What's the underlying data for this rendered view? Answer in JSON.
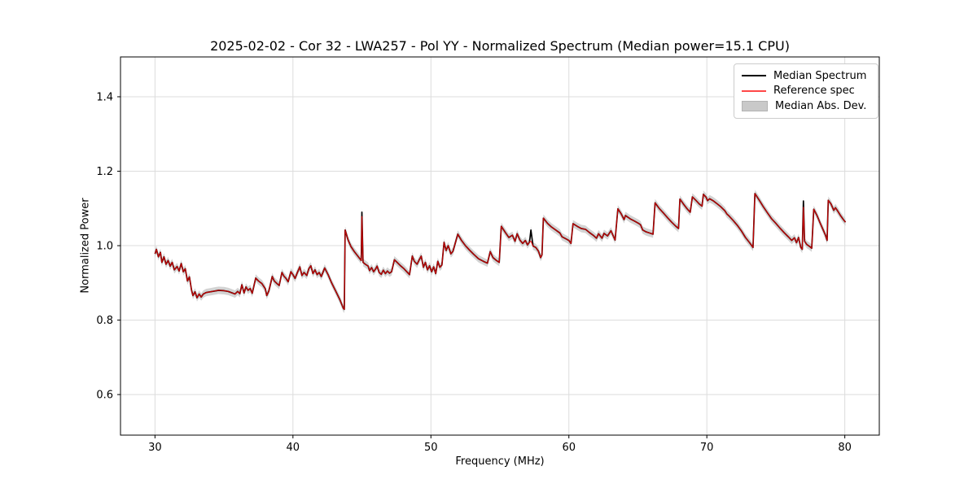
{
  "title": "2025-02-02 - Cor 32 - LWA257 - Pol YY - Normalized Spectrum (Median power=15.1 CPU)",
  "axes": {
    "xlabel": "Frequency (MHz)",
    "ylabel": "Normalized Power"
  },
  "legend": {
    "position": "upper right",
    "entries": [
      {
        "label": "Median Spectrum",
        "kind": "line",
        "color": "#000000"
      },
      {
        "label": "Reference spec",
        "kind": "line",
        "color": "rgba(255,0,0,0.72)"
      },
      {
        "label": "Median Abs. Dev.",
        "kind": "patch",
        "fill": "#c9c9c9",
        "edge": "#b3b3b3"
      }
    ]
  },
  "colors": {
    "median_line": "#000000",
    "reference_line_rgba": "rgba(255,0,0,0.75)",
    "mad_band_fill": "#c8c8c8",
    "grid": "#dcdcdc",
    "frame": "#000000",
    "tick_text": "#000000",
    "background": "#ffffff"
  },
  "chart_data": {
    "type": "line",
    "title": "2025-02-02 - Cor 32 - LWA257 - Pol YY - Normalized Spectrum (Median power=15.1 CPU)",
    "xlabel": "Frequency (MHz)",
    "ylabel": "Normalized Power",
    "xlim": [
      27.5,
      82.5
    ],
    "ylim": [
      0.491,
      1.507
    ],
    "x_ticks": [
      30,
      40,
      50,
      60,
      70,
      80
    ],
    "x_tick_labels": [
      "30",
      "40",
      "50",
      "60",
      "70",
      "80"
    ],
    "y_ticks": [
      0.6,
      0.8,
      1.0,
      1.2,
      1.4
    ],
    "y_tick_labels": [
      "0.6",
      "0.8",
      "1.0",
      "1.2",
      "1.4"
    ],
    "grid": true,
    "legend_position": "upper right",
    "band_halfwidth": 0.01,
    "reference_overrides": [
      [
        45.0,
        1.078
      ],
      [
        57.25,
        1.012
      ],
      [
        77.0,
        1.103
      ]
    ],
    "series": [
      {
        "name": "Median Spectrum",
        "points": [
          [
            30.0,
            0.978
          ],
          [
            30.1,
            0.99
          ],
          [
            30.25,
            0.97
          ],
          [
            30.4,
            0.982
          ],
          [
            30.5,
            0.955
          ],
          [
            30.65,
            0.97
          ],
          [
            30.8,
            0.95
          ],
          [
            30.95,
            0.96
          ],
          [
            31.1,
            0.945
          ],
          [
            31.25,
            0.955
          ],
          [
            31.4,
            0.935
          ],
          [
            31.6,
            0.944
          ],
          [
            31.75,
            0.932
          ],
          [
            31.9,
            0.952
          ],
          [
            32.05,
            0.93
          ],
          [
            32.2,
            0.938
          ],
          [
            32.35,
            0.905
          ],
          [
            32.5,
            0.916
          ],
          [
            32.65,
            0.88
          ],
          [
            32.75,
            0.866
          ],
          [
            32.9,
            0.876
          ],
          [
            33.05,
            0.86
          ],
          [
            33.2,
            0.87
          ],
          [
            33.35,
            0.862
          ],
          [
            33.5,
            0.87
          ],
          [
            33.7,
            0.874
          ],
          [
            34.0,
            0.876
          ],
          [
            34.3,
            0.878
          ],
          [
            34.6,
            0.88
          ],
          [
            35.0,
            0.879
          ],
          [
            35.3,
            0.877
          ],
          [
            35.6,
            0.873
          ],
          [
            35.8,
            0.87
          ],
          [
            36.0,
            0.877
          ],
          [
            36.15,
            0.871
          ],
          [
            36.3,
            0.895
          ],
          [
            36.45,
            0.873
          ],
          [
            36.6,
            0.889
          ],
          [
            36.75,
            0.88
          ],
          [
            36.9,
            0.885
          ],
          [
            37.05,
            0.872
          ],
          [
            37.3,
            0.913
          ],
          [
            37.5,
            0.905
          ],
          [
            37.75,
            0.898
          ],
          [
            38.0,
            0.884
          ],
          [
            38.1,
            0.866
          ],
          [
            38.25,
            0.878
          ],
          [
            38.5,
            0.917
          ],
          [
            38.65,
            0.905
          ],
          [
            38.85,
            0.898
          ],
          [
            39.0,
            0.893
          ],
          [
            39.2,
            0.928
          ],
          [
            39.35,
            0.918
          ],
          [
            39.5,
            0.912
          ],
          [
            39.65,
            0.903
          ],
          [
            39.85,
            0.93
          ],
          [
            40.0,
            0.922
          ],
          [
            40.15,
            0.912
          ],
          [
            40.3,
            0.926
          ],
          [
            40.5,
            0.943
          ],
          [
            40.65,
            0.92
          ],
          [
            40.8,
            0.928
          ],
          [
            41.0,
            0.92
          ],
          [
            41.15,
            0.938
          ],
          [
            41.3,
            0.946
          ],
          [
            41.45,
            0.925
          ],
          [
            41.6,
            0.935
          ],
          [
            41.75,
            0.922
          ],
          [
            41.9,
            0.928
          ],
          [
            42.05,
            0.917
          ],
          [
            42.3,
            0.94
          ],
          [
            42.55,
            0.922
          ],
          [
            42.8,
            0.9
          ],
          [
            43.1,
            0.878
          ],
          [
            43.4,
            0.855
          ],
          [
            43.65,
            0.832
          ],
          [
            43.72,
            0.829
          ],
          [
            43.78,
            1.042
          ],
          [
            44.0,
            1.015
          ],
          [
            44.2,
            0.998
          ],
          [
            44.45,
            0.984
          ],
          [
            44.7,
            0.972
          ],
          [
            44.95,
            0.96
          ],
          [
            45.0,
            1.09
          ],
          [
            45.08,
            0.955
          ],
          [
            45.25,
            0.95
          ],
          [
            45.45,
            0.945
          ],
          [
            45.55,
            0.933
          ],
          [
            45.7,
            0.941
          ],
          [
            45.85,
            0.93
          ],
          [
            46.0,
            0.938
          ],
          [
            46.1,
            0.945
          ],
          [
            46.25,
            0.928
          ],
          [
            46.4,
            0.923
          ],
          [
            46.55,
            0.934
          ],
          [
            46.7,
            0.925
          ],
          [
            46.85,
            0.932
          ],
          [
            47.0,
            0.926
          ],
          [
            47.15,
            0.93
          ],
          [
            47.35,
            0.962
          ],
          [
            47.55,
            0.955
          ],
          [
            47.8,
            0.946
          ],
          [
            48.05,
            0.938
          ],
          [
            48.3,
            0.928
          ],
          [
            48.45,
            0.922
          ],
          [
            48.65,
            0.972
          ],
          [
            48.8,
            0.958
          ],
          [
            49.0,
            0.95
          ],
          [
            49.15,
            0.962
          ],
          [
            49.3,
            0.972
          ],
          [
            49.45,
            0.942
          ],
          [
            49.6,
            0.955
          ],
          [
            49.75,
            0.935
          ],
          [
            49.9,
            0.946
          ],
          [
            50.05,
            0.93
          ],
          [
            50.2,
            0.943
          ],
          [
            50.35,
            0.925
          ],
          [
            50.5,
            0.958
          ],
          [
            50.65,
            0.942
          ],
          [
            50.8,
            0.948
          ],
          [
            50.95,
            1.009
          ],
          [
            51.1,
            0.987
          ],
          [
            51.25,
            1.0
          ],
          [
            51.45,
            0.978
          ],
          [
            51.6,
            0.985
          ],
          [
            51.95,
            1.031
          ],
          [
            52.2,
            1.015
          ],
          [
            52.5,
            1.0
          ],
          [
            52.8,
            0.988
          ],
          [
            53.1,
            0.977
          ],
          [
            53.45,
            0.965
          ],
          [
            53.8,
            0.958
          ],
          [
            54.1,
            0.953
          ],
          [
            54.3,
            0.984
          ],
          [
            54.5,
            0.968
          ],
          [
            54.75,
            0.96
          ],
          [
            54.95,
            0.955
          ],
          [
            55.1,
            1.052
          ],
          [
            55.4,
            1.035
          ],
          [
            55.65,
            1.022
          ],
          [
            55.9,
            1.028
          ],
          [
            56.1,
            1.012
          ],
          [
            56.25,
            1.032
          ],
          [
            56.45,
            1.015
          ],
          [
            56.65,
            1.006
          ],
          [
            56.85,
            1.014
          ],
          [
            57.0,
            1.002
          ],
          [
            57.15,
            1.01
          ],
          [
            57.25,
            1.042
          ],
          [
            57.4,
            0.999
          ],
          [
            57.6,
            0.995
          ],
          [
            57.8,
            0.985
          ],
          [
            57.95,
            0.968
          ],
          [
            58.05,
            0.975
          ],
          [
            58.15,
            1.074
          ],
          [
            58.45,
            1.06
          ],
          [
            58.75,
            1.05
          ],
          [
            59.05,
            1.042
          ],
          [
            59.35,
            1.034
          ],
          [
            59.5,
            1.024
          ],
          [
            59.8,
            1.018
          ],
          [
            60.0,
            1.014
          ],
          [
            60.15,
            1.006
          ],
          [
            60.3,
            1.059
          ],
          [
            60.6,
            1.052
          ],
          [
            60.9,
            1.046
          ],
          [
            61.2,
            1.044
          ],
          [
            61.5,
            1.035
          ],
          [
            61.8,
            1.027
          ],
          [
            62.0,
            1.02
          ],
          [
            62.15,
            1.032
          ],
          [
            62.4,
            1.02
          ],
          [
            62.55,
            1.033
          ],
          [
            62.8,
            1.026
          ],
          [
            63.05,
            1.04
          ],
          [
            63.35,
            1.015
          ],
          [
            63.55,
            1.099
          ],
          [
            63.8,
            1.085
          ],
          [
            64.0,
            1.07
          ],
          [
            64.1,
            1.081
          ],
          [
            64.45,
            1.072
          ],
          [
            64.75,
            1.066
          ],
          [
            65.05,
            1.06
          ],
          [
            65.2,
            1.056
          ],
          [
            65.35,
            1.042
          ],
          [
            65.6,
            1.037
          ],
          [
            65.85,
            1.034
          ],
          [
            66.1,
            1.031
          ],
          [
            66.25,
            1.115
          ],
          [
            66.55,
            1.1
          ],
          [
            66.85,
            1.088
          ],
          [
            67.15,
            1.075
          ],
          [
            67.45,
            1.063
          ],
          [
            67.75,
            1.052
          ],
          [
            67.95,
            1.046
          ],
          [
            68.05,
            1.125
          ],
          [
            68.3,
            1.112
          ],
          [
            68.55,
            1.1
          ],
          [
            68.8,
            1.09
          ],
          [
            68.95,
            1.131
          ],
          [
            69.2,
            1.122
          ],
          [
            69.45,
            1.112
          ],
          [
            69.65,
            1.106
          ],
          [
            69.75,
            1.138
          ],
          [
            69.95,
            1.13
          ],
          [
            70.05,
            1.121
          ],
          [
            70.2,
            1.126
          ],
          [
            70.45,
            1.121
          ],
          [
            70.7,
            1.114
          ],
          [
            71.0,
            1.105
          ],
          [
            71.3,
            1.094
          ],
          [
            71.45,
            1.085
          ],
          [
            71.6,
            1.08
          ],
          [
            71.9,
            1.068
          ],
          [
            72.2,
            1.055
          ],
          [
            72.5,
            1.04
          ],
          [
            72.8,
            1.022
          ],
          [
            73.1,
            1.008
          ],
          [
            73.35,
            0.995
          ],
          [
            73.48,
            1.14
          ],
          [
            73.8,
            1.122
          ],
          [
            74.1,
            1.104
          ],
          [
            74.4,
            1.088
          ],
          [
            74.7,
            1.072
          ],
          [
            75.0,
            1.06
          ],
          [
            75.3,
            1.047
          ],
          [
            75.6,
            1.035
          ],
          [
            75.9,
            1.024
          ],
          [
            76.15,
            1.014
          ],
          [
            76.35,
            1.021
          ],
          [
            76.5,
            1.008
          ],
          [
            76.65,
            1.022
          ],
          [
            76.8,
            0.996
          ],
          [
            76.92,
            0.99
          ],
          [
            77.0,
            1.12
          ],
          [
            77.08,
            1.012
          ],
          [
            77.25,
            1.003
          ],
          [
            77.45,
            0.998
          ],
          [
            77.6,
            0.993
          ],
          [
            77.75,
            1.098
          ],
          [
            78.0,
            1.08
          ],
          [
            78.2,
            1.062
          ],
          [
            78.4,
            1.045
          ],
          [
            78.6,
            1.028
          ],
          [
            78.72,
            1.014
          ],
          [
            78.8,
            1.122
          ],
          [
            79.0,
            1.112
          ],
          [
            79.2,
            1.095
          ],
          [
            79.32,
            1.102
          ],
          [
            79.5,
            1.092
          ],
          [
            79.7,
            1.08
          ],
          [
            79.9,
            1.07
          ],
          [
            80.05,
            1.063
          ]
        ]
      },
      {
        "name": "Reference spec",
        "note": "identical to Median Spectrum except at reference_overrides spike tops"
      },
      {
        "name": "Median Abs. Dev.",
        "note": "shaded band of half-width band_halfwidth around Median Spectrum"
      }
    ]
  }
}
